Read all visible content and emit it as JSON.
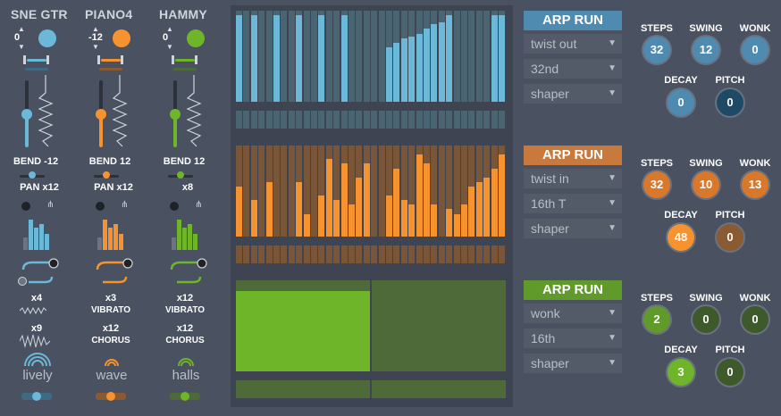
{
  "channels": [
    {
      "name": "SNE GTR",
      "transpose": "0",
      "color": "#6cb8d8",
      "color_dim": "#3e6a84",
      "bend": "BEND -12",
      "pan": "PAN x12",
      "mod1_val": "x4",
      "mod1_name": "",
      "mod2_val": "x9",
      "mod2_name": "",
      "reverb": "lively"
    },
    {
      "name": "PIANO4",
      "transpose": "-12",
      "color": "#f7932f",
      "color_dim": "#8a5a32",
      "bend": "BEND 12",
      "pan": "PAN x12",
      "mod1_val": "x3",
      "mod1_name": "VIBRATO",
      "mod2_val": "x12",
      "mod2_name": "CHORUS",
      "reverb": "wave"
    },
    {
      "name": "HAMMY",
      "transpose": "0",
      "color": "#6eb52a",
      "color_dim": "#4d6a38",
      "bend": "BEND 12",
      "pan": "x8",
      "mod1_val": "x12",
      "mod1_name": "VIBRATO",
      "mod2_val": "x12",
      "mod2_name": "CHORUS",
      "reverb": "halls"
    }
  ],
  "sequencers": [
    {
      "color": "#6cb8d8",
      "bg": "#4a6472",
      "values": [
        0.95,
        0,
        0.95,
        0,
        0,
        0.95,
        0,
        0,
        0.95,
        0,
        0,
        0.95,
        0,
        0,
        0.95,
        0,
        0,
        0,
        0,
        0,
        0.6,
        0.65,
        0.7,
        0.72,
        0.75,
        0.8,
        0.85,
        0.87,
        0.95,
        0,
        0,
        0,
        0,
        0,
        0.95,
        0.95
      ]
    },
    {
      "color": "#f7932f",
      "bg": "#7a5638",
      "values": [
        0.55,
        0,
        0.4,
        0,
        0.6,
        0,
        0,
        0,
        0.6,
        0.25,
        0,
        0.45,
        0.85,
        0.4,
        0.8,
        0.35,
        0.65,
        0.8,
        0,
        0,
        0.45,
        0.75,
        0.4,
        0.35,
        0.9,
        0.8,
        0.35,
        0,
        0.3,
        0.25,
        0.35,
        0.55,
        0.6,
        0.65,
        0.75,
        0.9
      ]
    },
    {
      "color": "#6eb52a",
      "bg": "#4d6a38",
      "blocks": [
        1,
        0
      ]
    }
  ],
  "arps": [
    {
      "button_label": "ARP RUN",
      "button_color": "#4f8ab0",
      "mode": "twist out",
      "rate": "32nd",
      "shape": "shaper",
      "steps_label": "STEPS",
      "swing_label": "SWING",
      "wonk_label": "WONK",
      "decay_label": "DECAY",
      "pitch_label": "PITCH",
      "steps": "32",
      "swing": "12",
      "wonk": "0",
      "decay": "0",
      "pitch": "0",
      "knob_main": "#4f8ab0",
      "knob_dark": "#2e4a62"
    },
    {
      "button_label": "ARP RUN",
      "button_color": "#c87a3e",
      "mode": "twist in",
      "rate": "16th T",
      "shape": "shaper",
      "steps_label": "STEPS",
      "swing_label": "SWING",
      "wonk_label": "WONK",
      "decay_label": "DECAY",
      "pitch_label": "PITCH",
      "steps": "32",
      "swing": "10",
      "wonk": "13",
      "decay": "48",
      "pitch": "0",
      "knob_main": "#d9782a",
      "knob_dark": "#8a5a32"
    },
    {
      "button_label": "ARP RUN",
      "button_color": "#5f9a2a",
      "mode": "wonk",
      "rate": "16th",
      "shape": "shaper",
      "steps_label": "STEPS",
      "swing_label": "SWING",
      "wonk_label": "WONK",
      "decay_label": "DECAY",
      "pitch_label": "PITCH",
      "steps": "2",
      "swing": "0",
      "wonk": "0",
      "decay": "3",
      "pitch": "0",
      "knob_main": "#5f9a2a",
      "knob_dark": "#3e5a2a"
    }
  ]
}
